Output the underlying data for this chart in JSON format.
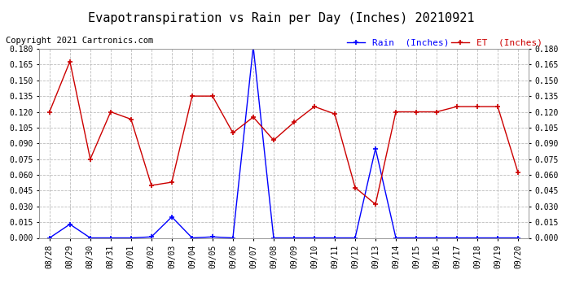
{
  "title": "Evapotranspiration vs Rain per Day (Inches) 20210921",
  "copyright": "Copyright 2021 Cartronics.com",
  "x_labels": [
    "08/28",
    "08/29",
    "08/30",
    "08/31",
    "09/01",
    "09/02",
    "09/03",
    "09/04",
    "09/05",
    "09/06",
    "09/07",
    "09/08",
    "09/09",
    "09/10",
    "09/11",
    "09/12",
    "09/13",
    "09/14",
    "09/15",
    "09/16",
    "09/17",
    "09/18",
    "09/19",
    "09/20"
  ],
  "rain_values": [
    0.0,
    0.013,
    0.0,
    0.0,
    0.0,
    0.001,
    0.02,
    0.0,
    0.001,
    0.0,
    0.182,
    0.0,
    0.0,
    0.0,
    0.0,
    0.0,
    0.085,
    0.0,
    0.0,
    0.0,
    0.0,
    0.0,
    0.0,
    0.0
  ],
  "et_values": [
    0.12,
    0.168,
    0.075,
    0.12,
    0.113,
    0.05,
    0.053,
    0.135,
    0.135,
    0.1,
    0.115,
    0.093,
    0.11,
    0.125,
    0.118,
    0.048,
    0.032,
    0.12,
    0.12,
    0.12,
    0.125,
    0.125,
    0.125,
    0.062
  ],
  "rain_color": "#0000ff",
  "et_color": "#cc0000",
  "ylim_min": 0.0,
  "ylim_max": 0.18,
  "background_color": "#ffffff",
  "grid_color": "#bbbbbb",
  "legend_rain_label": "Rain  (Inches)",
  "legend_et_label": "ET  (Inches)",
  "title_fontsize": 11,
  "copyright_fontsize": 7.5,
  "tick_fontsize": 7,
  "legend_fontsize": 8,
  "marker_size": 4,
  "linewidth": 1.0
}
